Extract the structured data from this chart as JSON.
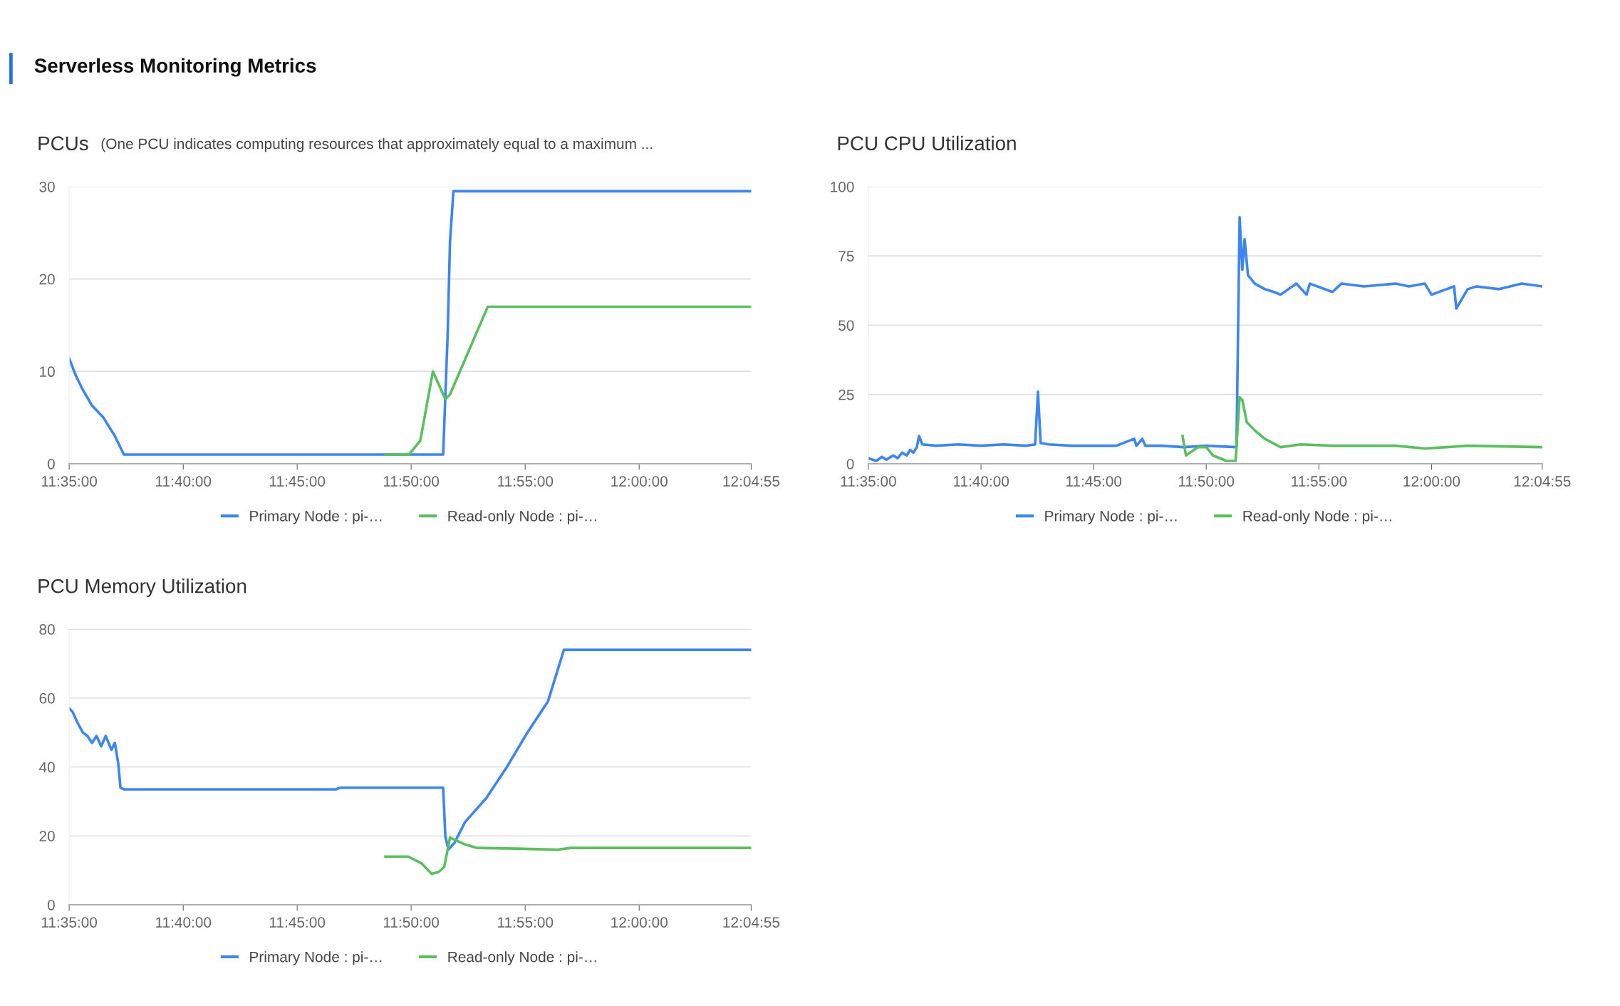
{
  "chart_data": [
    {
      "type": "other",
      "title": "Serverless Monitoring Metrics"
    },
    {
      "type": "line",
      "title": "PCUs",
      "subtitle": "(One PCU indicates computing resources that approximately equal to a maximum ...",
      "xlim": [
        11.5833,
        12.0819
      ],
      "xticks": [
        {
          "value": 11.5833,
          "label": "11:35:00"
        },
        {
          "value": 11.6667,
          "label": "11:40:00"
        },
        {
          "value": 11.75,
          "label": "11:45:00"
        },
        {
          "value": 11.8333,
          "label": "11:50:00"
        },
        {
          "value": 11.9167,
          "label": "11:55:00"
        },
        {
          "value": 12.0,
          "label": "12:00:00"
        },
        {
          "value": 12.0819,
          "label": "12:04:55"
        }
      ],
      "ylim": [
        0,
        30
      ],
      "yticks": [
        0,
        10,
        20,
        30
      ],
      "grid": "y",
      "legend": "bottom",
      "marker": "none",
      "line_style": "solid",
      "series": [
        {
          "name": "Primary Node : pi-…",
          "color": "#3d86f0",
          "x": [
            11.5833,
            11.5883,
            11.5933,
            11.6,
            11.6083,
            11.6167,
            11.6233,
            11.8567,
            11.86,
            11.8617,
            11.8642,
            12.0819
          ],
          "values": [
            11.4,
            9.5,
            8,
            6.3,
            5,
            3,
            1,
            1,
            14,
            24,
            29.5,
            29.5
          ]
        },
        {
          "name": "Read-only Node : pi-…",
          "color": "#5cbf5f",
          "x": [
            11.8145,
            11.8317,
            11.84,
            11.8492,
            11.8583,
            11.8617,
            11.8893,
            12.0819
          ],
          "values": [
            1,
            1,
            2.5,
            10,
            7,
            7.5,
            17,
            17
          ]
        }
      ]
    },
    {
      "type": "line",
      "title": "PCU CPU Utilization",
      "xlim": [
        11.5833,
        12.0819
      ],
      "xticks": [
        {
          "value": 11.5833,
          "label": "11:35:00"
        },
        {
          "value": 11.6667,
          "label": "11:40:00"
        },
        {
          "value": 11.75,
          "label": "11:45:00"
        },
        {
          "value": 11.8333,
          "label": "11:50:00"
        },
        {
          "value": 11.9167,
          "label": "11:55:00"
        },
        {
          "value": 12.0,
          "label": "12:00:00"
        },
        {
          "value": 12.0819,
          "label": "12:04:55"
        }
      ],
      "ylim": [
        0,
        100
      ],
      "yticks": [
        0,
        25,
        50,
        75,
        100
      ],
      "grid": "y",
      "legend": "bottom",
      "marker": "none",
      "line_style": "solid",
      "series": [
        {
          "name": "Primary Node : pi-…",
          "color": "#3d86f0",
          "x": [
            11.5833,
            11.5892,
            11.5933,
            11.5967,
            11.6017,
            11.605,
            11.6083,
            11.6117,
            11.6142,
            11.6167,
            11.6192,
            11.6208,
            11.6233,
            11.6333,
            11.65,
            11.6667,
            11.6833,
            11.7,
            11.7067,
            11.7088,
            11.7108,
            11.7167,
            11.7333,
            11.75,
            11.7667,
            11.78,
            11.7817,
            11.786,
            11.7883,
            11.8,
            11.8167,
            11.8333,
            11.8557,
            11.858,
            11.86,
            11.8617,
            11.8642,
            11.8693,
            11.8767,
            11.8833,
            11.8883,
            11.9,
            11.9075,
            11.91,
            11.9267,
            11.9333,
            11.95,
            11.9733,
            11.9833,
            11.995,
            12.0,
            12.0167,
            12.0183,
            12.0267,
            12.0333,
            12.05,
            12.0667,
            12.0819
          ],
          "values": [
            2,
            1,
            2.5,
            1.5,
            3,
            2,
            4,
            3,
            5,
            4,
            6,
            10,
            7,
            6.5,
            7,
            6.5,
            7,
            6.5,
            7,
            26,
            7.5,
            7,
            6.5,
            6.5,
            6.5,
            9,
            6.5,
            9,
            6.5,
            6.5,
            6,
            6.5,
            6,
            89,
            70,
            81,
            68,
            65,
            63,
            62,
            61,
            65,
            61,
            65,
            62,
            65,
            64,
            65,
            64,
            65,
            61,
            64,
            56,
            63,
            64,
            63,
            65,
            64
          ]
        },
        {
          "name": "Read-only Node : pi-…",
          "color": "#5cbf5f",
          "x": [
            11.8158,
            11.8183,
            11.8273,
            11.8333,
            11.8383,
            11.8483,
            11.855,
            11.858,
            11.86,
            11.8633,
            11.8693,
            11.8767,
            11.8883,
            11.9033,
            11.9267,
            11.9733,
            11.995,
            12.0267,
            12.0819
          ],
          "values": [
            10,
            3,
            6,
            6,
            3,
            1,
            1,
            24,
            23,
            15,
            12,
            9,
            6,
            7,
            6.5,
            6.5,
            5.5,
            6.5,
            6
          ]
        }
      ]
    },
    {
      "type": "line",
      "title": "PCU Memory Utilization",
      "xlim": [
        11.5833,
        12.0819
      ],
      "xticks": [
        {
          "value": 11.5833,
          "label": "11:35:00"
        },
        {
          "value": 11.6667,
          "label": "11:40:00"
        },
        {
          "value": 11.75,
          "label": "11:45:00"
        },
        {
          "value": 11.8333,
          "label": "11:50:00"
        },
        {
          "value": 11.9167,
          "label": "11:55:00"
        },
        {
          "value": 12.0,
          "label": "12:00:00"
        },
        {
          "value": 12.0819,
          "label": "12:04:55"
        }
      ],
      "ylim": [
        0,
        80
      ],
      "yticks": [
        0,
        20,
        40,
        60,
        80
      ],
      "grid": "y",
      "legend": "bottom",
      "marker": "none",
      "line_style": "solid",
      "series": [
        {
          "name": "Primary Node : pi-…",
          "color": "#3d86f0",
          "x": [
            11.5833,
            11.5858,
            11.5892,
            11.5933,
            11.5967,
            11.6,
            11.6033,
            11.6067,
            11.61,
            11.6142,
            11.6167,
            11.6192,
            11.6208,
            11.6233,
            11.6267,
            11.7783,
            11.7817,
            11.8567,
            11.8583,
            11.8605,
            11.865,
            11.8727,
            11.8883,
            11.9033,
            11.9183,
            11.9333,
            11.945,
            12.0819
          ],
          "values": [
            57,
            56,
            53,
            50,
            49,
            47,
            49,
            46,
            49,
            45,
            47,
            41,
            34,
            33.5,
            33.5,
            33.5,
            34,
            34,
            20,
            16,
            18,
            24,
            31,
            40,
            50,
            59,
            74,
            74
          ]
        },
        {
          "name": "Read-only Node : pi-…",
          "color": "#5cbf5f",
          "x": [
            11.8145,
            11.8312,
            11.841,
            11.8483,
            11.8533,
            11.8575,
            11.8617,
            11.8727,
            11.8817,
            11.91,
            11.9407,
            11.95,
            12.0819
          ],
          "values": [
            14,
            14,
            12,
            9,
            9.5,
            11,
            19.5,
            17.5,
            16.5,
            16.3,
            16,
            16.5,
            16.5
          ]
        }
      ]
    }
  ]
}
